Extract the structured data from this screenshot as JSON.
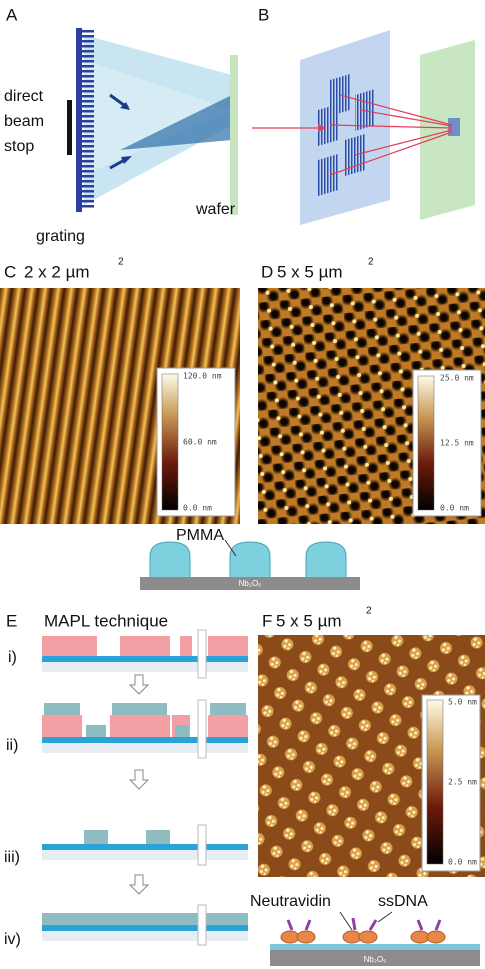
{
  "panel_a": {
    "label": "A",
    "beam_stop": [
      "direct",
      "beam",
      "stop"
    ],
    "grating": "grating",
    "wafer": "wafer"
  },
  "panel_b": {
    "label": "B"
  },
  "panel_c": {
    "label": "C",
    "size": "2 x 2 µm",
    "exponent": "2",
    "colorbar": [
      "120.0 nm",
      "60.0 nm",
      "0.0 nm"
    ]
  },
  "panel_d": {
    "label": "D",
    "size": "5 x 5 µm",
    "exponent": "2",
    "colorbar": [
      "25.0 nm",
      "12.5 nm",
      "0.0 nm"
    ]
  },
  "pmma_diagram": {
    "layer": "PMMA",
    "substrate": "Nb₂O₅"
  },
  "panel_e": {
    "label": "E",
    "title": "MAPL technique",
    "steps": [
      "i)",
      "ii)",
      "iii)",
      "iv)"
    ]
  },
  "panel_f": {
    "label": "F",
    "size": "5 x 5 µm",
    "exponent": "2",
    "colorbar": [
      "5.0 nm",
      "2.5 nm",
      "0.0 nm"
    ]
  },
  "bio_diagram": {
    "neutravidin": "Neutravidin",
    "ssdna": "ssDNA",
    "substrate": "Nb₂O₅"
  }
}
